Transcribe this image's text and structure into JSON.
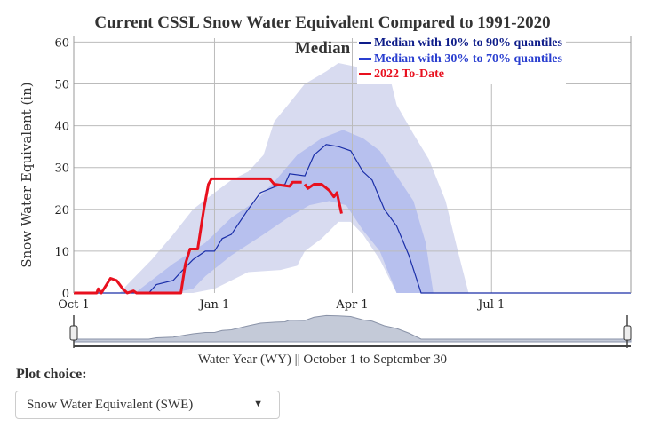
{
  "chart_data": {
    "type": "area",
    "title": "Current CSSL Snow Water Equivalent Compared to 1991-2020 Median",
    "title_line1": "Current CSSL Snow Water Equivalent Compared to 1991-2020",
    "title_line2": "Median",
    "ylabel": "Snow Water Equivalent (in)",
    "xlabel": "Water Year (WY) || October 1 to September 30",
    "xlim": [
      "2021-10-01",
      "2022-09-30"
    ],
    "ylim": [
      0,
      62
    ],
    "yticks": [
      0,
      10,
      20,
      30,
      40,
      50,
      60
    ],
    "xticks": [
      {
        "date": "2021-10-01",
        "label": "Oct 1"
      },
      {
        "date": "2022-01-01",
        "label": "Jan 1"
      },
      {
        "date": "2022-04-01",
        "label": "Apr 1"
      },
      {
        "date": "2022-07-01",
        "label": "Jul 1"
      }
    ],
    "grid": true,
    "legend_position": "top-right",
    "colors": {
      "median": "#1a2ea8",
      "band_10_90": "#d8dbf0",
      "band_30_70": "#b7c0ee",
      "current": "#e8101e",
      "range_fill": "#c4cad8",
      "range_line": "#8a93a8"
    },
    "legend": [
      {
        "label": "Median with 10% to 90% quantiles",
        "color": "#0e1d8a"
      },
      {
        "label": "Median with 30% to 70% quantiles",
        "color": "#2a3fd0"
      },
      {
        "label": "2022 To-Date",
        "color": "#e8101e"
      }
    ],
    "band_10_90": {
      "upper": [
        [
          "2021-10-31",
          0
        ],
        [
          "2021-11-05",
          2
        ],
        [
          "2021-11-21",
          8
        ],
        [
          "2021-12-05",
          14
        ],
        [
          "2021-12-18",
          20
        ],
        [
          "2022-01-01",
          24
        ],
        [
          "2022-01-12",
          27
        ],
        [
          "2022-01-23",
          29
        ],
        [
          "2022-02-02",
          33
        ],
        [
          "2022-02-09",
          41
        ],
        [
          "2022-02-18",
          45
        ],
        [
          "2022-03-01",
          50
        ],
        [
          "2022-03-15",
          53
        ],
        [
          "2022-03-23",
          55
        ],
        [
          "2022-04-05",
          54
        ],
        [
          "2022-04-24",
          54
        ],
        [
          "2022-04-30",
          45
        ],
        [
          "2022-05-11",
          38
        ],
        [
          "2022-05-21",
          32
        ],
        [
          "2022-06-01",
          22
        ],
        [
          "2022-06-09",
          10
        ],
        [
          "2022-06-16",
          0
        ]
      ],
      "lower": [
        [
          "2021-10-31",
          0
        ],
        [
          "2021-12-18",
          0
        ],
        [
          "2022-01-01",
          1
        ],
        [
          "2022-01-12",
          3
        ],
        [
          "2022-01-23",
          5
        ],
        [
          "2022-02-13",
          5.5
        ],
        [
          "2022-02-24",
          6.5
        ],
        [
          "2022-03-01",
          10
        ],
        [
          "2022-03-12",
          13
        ],
        [
          "2022-03-23",
          17
        ],
        [
          "2022-03-31",
          17
        ],
        [
          "2022-04-08",
          14
        ],
        [
          "2022-04-19",
          8
        ],
        [
          "2022-04-30",
          0
        ],
        [
          "2022-06-16",
          0
        ]
      ]
    },
    "band_30_70": {
      "upper": [
        [
          "2021-11-10",
          0
        ],
        [
          "2021-12-05",
          7
        ],
        [
          "2021-12-26",
          12
        ],
        [
          "2022-01-12",
          18
        ],
        [
          "2022-01-28",
          22
        ],
        [
          "2022-02-10",
          27
        ],
        [
          "2022-02-24",
          33
        ],
        [
          "2022-03-12",
          37
        ],
        [
          "2022-03-26",
          39
        ],
        [
          "2022-04-08",
          37
        ],
        [
          "2022-04-19",
          34
        ],
        [
          "2022-04-30",
          28
        ],
        [
          "2022-05-11",
          22
        ],
        [
          "2022-05-19",
          12
        ],
        [
          "2022-05-24",
          0
        ]
      ],
      "lower": [
        [
          "2021-11-10",
          0
        ],
        [
          "2021-12-05",
          0
        ],
        [
          "2021-12-18",
          1
        ],
        [
          "2021-12-26",
          4
        ],
        [
          "2022-01-12",
          9
        ],
        [
          "2022-02-02",
          14
        ],
        [
          "2022-02-18",
          18
        ],
        [
          "2022-03-04",
          21
        ],
        [
          "2022-03-17",
          22
        ],
        [
          "2022-03-28",
          21
        ],
        [
          "2022-04-08",
          15
        ],
        [
          "2022-04-19",
          10
        ],
        [
          "2022-04-30",
          0
        ],
        [
          "2022-05-24",
          0
        ]
      ]
    },
    "median": [
      [
        "2021-10-01",
        0
      ],
      [
        "2021-11-19",
        0
      ],
      [
        "2021-11-24",
        2
      ],
      [
        "2021-12-05",
        3
      ],
      [
        "2021-12-10",
        5
      ],
      [
        "2021-12-18",
        8
      ],
      [
        "2021-12-26",
        10
      ],
      [
        "2022-01-01",
        10
      ],
      [
        "2022-01-06",
        13
      ],
      [
        "2022-01-12",
        14
      ],
      [
        "2022-01-23",
        20
      ],
      [
        "2022-01-31",
        24
      ],
      [
        "2022-02-10",
        25.5
      ],
      [
        "2022-02-16",
        26
      ],
      [
        "2022-02-19",
        28.5
      ],
      [
        "2022-03-01",
        28
      ],
      [
        "2022-03-07",
        33
      ],
      [
        "2022-03-15",
        35.5
      ],
      [
        "2022-03-23",
        35
      ],
      [
        "2022-03-31",
        34
      ],
      [
        "2022-04-08",
        29
      ],
      [
        "2022-04-14",
        27
      ],
      [
        "2022-04-22",
        20
      ],
      [
        "2022-04-30",
        16
      ],
      [
        "2022-05-08",
        9
      ],
      [
        "2022-05-16",
        0
      ],
      [
        "2022-09-30",
        0
      ]
    ],
    "current_2022": [
      [
        "2021-10-01",
        0
      ],
      [
        "2021-10-16",
        0
      ],
      [
        "2021-10-17",
        1
      ],
      [
        "2021-10-19",
        0
      ],
      [
        "2021-10-25",
        3.5
      ],
      [
        "2021-10-29",
        3
      ],
      [
        "2021-11-02",
        1
      ],
      [
        "2021-11-05",
        0
      ],
      [
        "2021-11-09",
        0.5
      ],
      [
        "2021-11-11",
        0
      ],
      [
        "2021-12-10",
        0
      ],
      [
        "2021-12-13",
        7
      ],
      [
        "2021-12-16",
        10.5
      ],
      [
        "2021-12-21",
        10.5
      ],
      [
        "2021-12-25",
        20
      ],
      [
        "2021-12-28",
        26
      ],
      [
        "2021-12-30",
        27.3
      ],
      [
        "2022-02-06",
        27.3
      ],
      [
        "2022-02-09",
        26
      ],
      [
        "2022-02-19",
        25.5
      ],
      [
        "2022-02-21",
        26.5
      ],
      [
        "2022-02-27",
        26.5
      ],
      [
        "2022-02-28",
        null
      ],
      [
        "2022-03-01",
        26
      ],
      [
        "2022-03-03",
        25
      ],
      [
        "2022-03-07",
        26
      ],
      [
        "2022-03-12",
        26
      ],
      [
        "2022-03-17",
        24.5
      ],
      [
        "2022-03-20",
        23
      ],
      [
        "2022-03-22",
        24
      ],
      [
        "2022-03-25",
        19
      ]
    ]
  },
  "controls": {
    "plot_choice_label": "Plot choice:",
    "plot_choice_value": "Snow Water Equivalent (SWE)",
    "dropdown_icon": "caret-down-icon"
  }
}
